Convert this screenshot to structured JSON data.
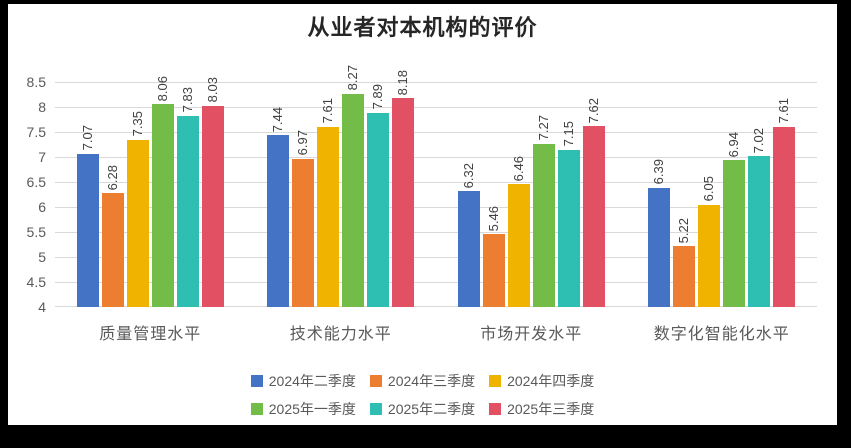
{
  "frame": {
    "background": "#000000",
    "card_background": "#ffffff"
  },
  "chart_data": {
    "type": "bar",
    "title": "从业者对本机构的评价",
    "categories": [
      "质量管理水平",
      "技术能力水平",
      "市场开发水平",
      "数字化智能化水平"
    ],
    "series": [
      {
        "name": "2024年二季度",
        "color": "#4472C4",
        "values": [
          7.07,
          7.44,
          6.32,
          6.39
        ]
      },
      {
        "name": "2024年三季度",
        "color": "#ED7D31",
        "values": [
          6.28,
          6.97,
          5.46,
          5.22
        ]
      },
      {
        "name": "2024年四季度",
        "color": "#F0B400",
        "values": [
          7.35,
          7.61,
          6.46,
          6.05
        ]
      },
      {
        "name": "2025年一季度",
        "color": "#73BC47",
        "values": [
          8.06,
          8.27,
          7.27,
          6.94
        ]
      },
      {
        "name": "2025年二季度",
        "color": "#2FBFB2",
        "values": [
          7.83,
          7.89,
          7.15,
          7.02
        ]
      },
      {
        "name": "2025年三季度",
        "color": "#E25063",
        "values": [
          8.03,
          8.18,
          7.62,
          7.61
        ]
      }
    ],
    "ylim": [
      4,
      8.5
    ],
    "ytick_step": 0.5,
    "yticks": [
      "4",
      "4.5",
      "5",
      "5.5",
      "6",
      "6.5",
      "7",
      "7.5",
      "8",
      "8.5"
    ],
    "grid": "horizontal",
    "gridline_color": "#d9d9d9",
    "axis_label_color": "#595959",
    "data_label_color": "#404040",
    "data_labels": "rotated 90° counterclockwise, two decimals, above bars",
    "legend_position": "bottom, two rows of three"
  }
}
